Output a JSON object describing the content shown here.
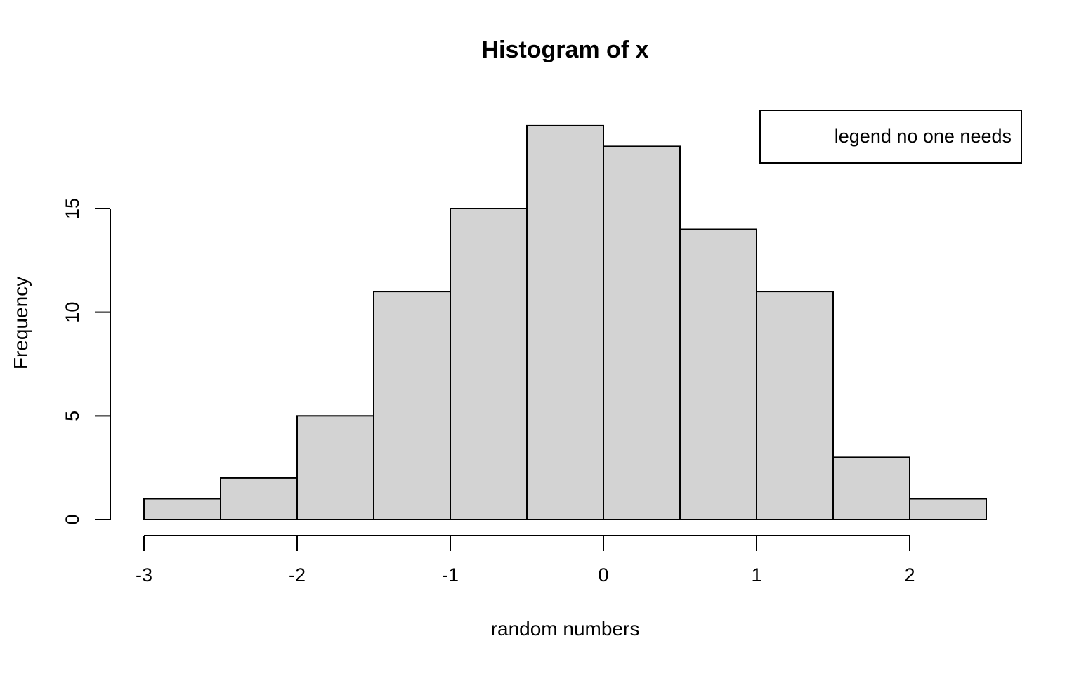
{
  "title": "Histogram of x",
  "chart_data": {
    "type": "bar",
    "variant": "histogram",
    "title": "Histogram of x",
    "xlabel": "random numbers",
    "ylabel": "Frequency",
    "bin_start": -3.0,
    "bin_width": 0.5,
    "bin_edges": [
      -3.0,
      -2.5,
      -2.0,
      -1.5,
      -1.0,
      -0.5,
      0.0,
      0.5,
      1.0,
      1.5,
      2.0,
      2.5
    ],
    "counts": [
      1,
      2,
      5,
      11,
      15,
      19,
      18,
      14,
      11,
      3,
      1
    ],
    "total_n": 100,
    "x_ticks": [
      -3,
      -2,
      -1,
      0,
      1,
      2
    ],
    "y_ticks": [
      0,
      5,
      10,
      15
    ],
    "xlim": [
      -3,
      2.5
    ],
    "ylim": [
      0,
      19
    ],
    "grid": false,
    "legend": "legend no one needs",
    "legend_position": "topright",
    "bar_fill": "#d3d3d3",
    "bar_stroke": "#000000",
    "axis_color": "#000000",
    "text_color": "#000000",
    "background": "#ffffff"
  }
}
